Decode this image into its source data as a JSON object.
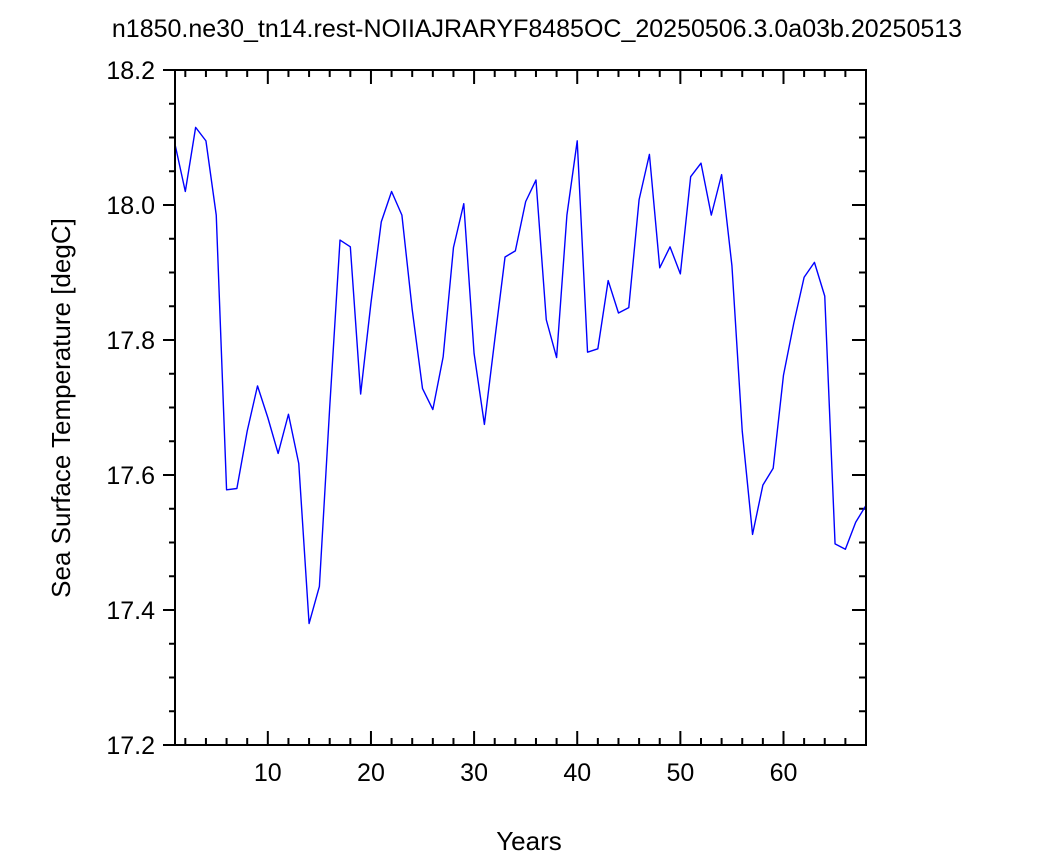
{
  "chart_data": {
    "type": "line",
    "title": "n1850.ne30_tn14.rest-NOIIAJRARYF8485OC_20250506.3.0a03b.20250513",
    "xlabel": "Years",
    "ylabel": "Sea Surface Temperature [degC]",
    "xlim": [
      1,
      68
    ],
    "ylim": [
      17.2,
      18.2
    ],
    "xticks": [
      10,
      20,
      30,
      40,
      50,
      60
    ],
    "xtick_labels": [
      "10",
      "20",
      "30",
      "40",
      "50",
      "60"
    ],
    "yticks": [
      17.2,
      17.4,
      17.6,
      17.8,
      18.0,
      18.2
    ],
    "ytick_labels": [
      "17.2",
      "17.4",
      "17.6",
      "17.8",
      "18.0",
      "18.2"
    ],
    "grid": false,
    "line_color": "#0000ff",
    "x": [
      1,
      2,
      3,
      4,
      5,
      6,
      7,
      8,
      9,
      10,
      11,
      12,
      13,
      14,
      15,
      16,
      17,
      18,
      19,
      20,
      21,
      22,
      23,
      24,
      25,
      26,
      27,
      28,
      29,
      30,
      31,
      32,
      33,
      34,
      35,
      36,
      37,
      38,
      39,
      40,
      41,
      42,
      43,
      44,
      45,
      46,
      47,
      48,
      49,
      50,
      51,
      52,
      53,
      54,
      55,
      56,
      57,
      58,
      59,
      60,
      61,
      62,
      63,
      64,
      65,
      66,
      67,
      68
    ],
    "values": [
      18.09,
      18.02,
      18.115,
      18.095,
      17.985,
      17.578,
      17.58,
      17.665,
      17.732,
      17.685,
      17.632,
      17.69,
      17.617,
      17.38,
      17.435,
      17.7,
      17.948,
      17.938,
      17.72,
      17.855,
      17.975,
      18.02,
      17.985,
      17.845,
      17.728,
      17.697,
      17.775,
      17.937,
      18.002,
      17.78,
      17.675,
      17.8,
      17.923,
      17.932,
      18.005,
      18.037,
      17.83,
      17.774,
      17.985,
      18.095,
      17.782,
      17.787,
      17.888,
      17.84,
      17.848,
      18.008,
      18.075,
      17.907,
      17.938,
      17.898,
      18.042,
      18.062,
      17.985,
      18.045,
      17.91,
      17.665,
      17.512,
      17.585,
      17.61,
      17.748,
      17.825,
      17.893,
      17.915,
      17.865,
      17.498,
      17.49,
      17.53,
      17.555
    ]
  }
}
